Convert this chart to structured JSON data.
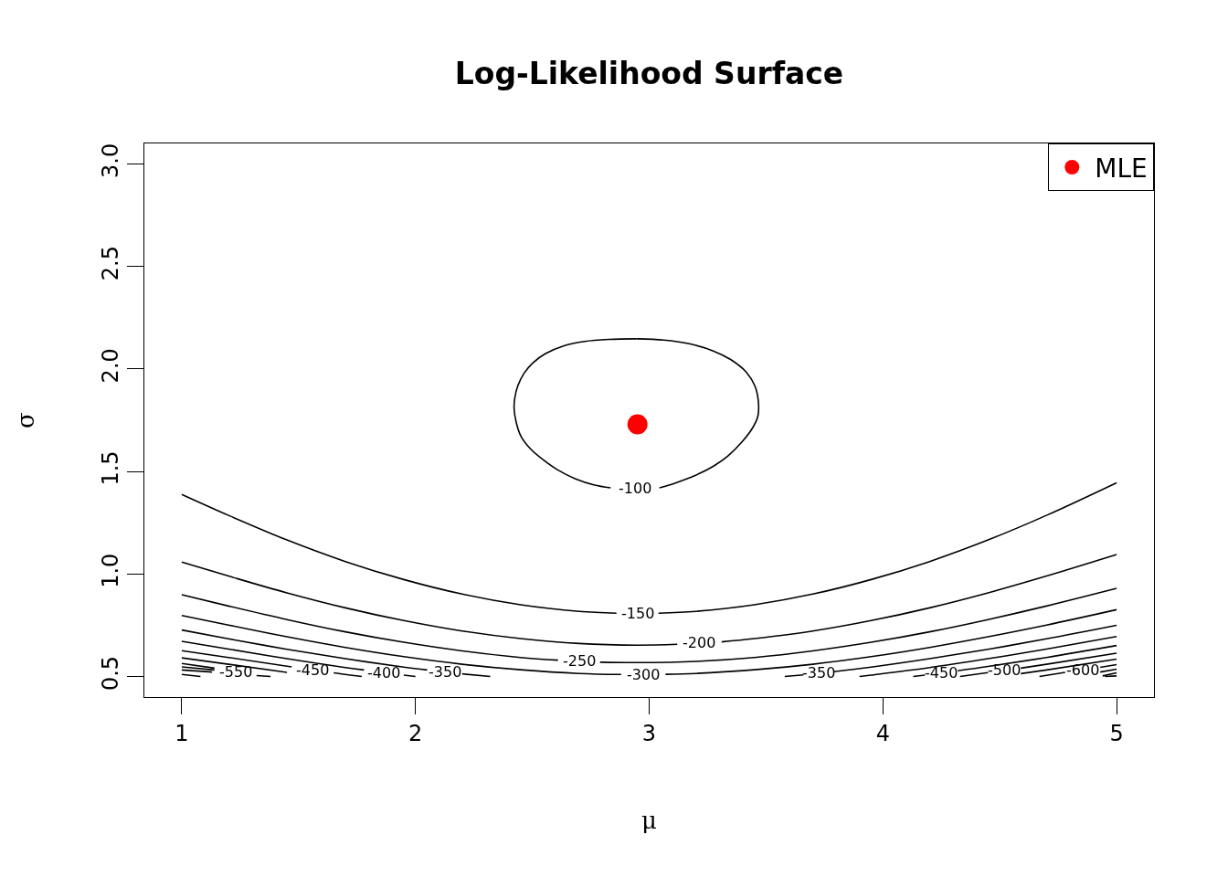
{
  "chart_data": {
    "type": "line",
    "title": "Log-Likelihood Surface",
    "xlabel": "μ",
    "ylabel": "σ",
    "xlim": [
      0.84,
      5.16
    ],
    "ylim": [
      0.4,
      3.1
    ],
    "xticks": [
      1,
      2,
      3,
      4,
      5
    ],
    "yticks": [
      {
        "value": 0.5,
        "label": "0.5"
      },
      {
        "value": 1,
        "label": "1.0"
      },
      {
        "value": 1.5,
        "label": "1.5"
      },
      {
        "value": 2,
        "label": "2.0"
      },
      {
        "value": 2.5,
        "label": "2.5"
      },
      {
        "value": 3,
        "label": "3.0"
      }
    ],
    "legend": "top right",
    "line_style": "solid",
    "series": [
      {
        "name": "-100",
        "color": "#000000",
        "x": [
          2.946,
          3.063,
          3.167,
          3.272,
          3.35,
          3.415,
          3.452,
          3.467,
          3.465,
          3.441,
          3.396,
          3.337,
          3.272,
          3.194,
          3.115,
          3.044,
          null,
          2.835,
          2.763,
          2.685,
          2.607,
          2.542,
          2.49,
          2.451,
          2.431,
          2.422,
          2.425,
          2.438,
          2.464,
          2.503,
          2.555,
          2.633,
          2.724,
          2.829,
          2.946
        ],
        "values": [
          2.147,
          2.141,
          2.124,
          2.089,
          2.045,
          1.985,
          1.918,
          1.844,
          1.769,
          1.71,
          1.643,
          1.576,
          1.524,
          1.479,
          1.445,
          1.42,
          null,
          1.42,
          1.435,
          1.464,
          1.509,
          1.561,
          1.613,
          1.673,
          1.74,
          1.807,
          1.859,
          1.918,
          1.978,
          2.03,
          2.074,
          2.112,
          2.134,
          2.144,
          2.147
        ]
      },
      {
        "name": "-150",
        "color": "#000000",
        "x": [
          1,
          1.2,
          1.45,
          1.7,
          1.95,
          2.2,
          2.45,
          2.7,
          2.86,
          null,
          3.04,
          3.2,
          3.45,
          3.7,
          3.95,
          4.2,
          4.45,
          4.7,
          5
        ],
        "values": [
          1.388,
          1.286,
          1.166,
          1.061,
          0.973,
          0.902,
          0.85,
          0.818,
          0.809,
          null,
          0.809,
          0.818,
          0.85,
          0.902,
          0.973,
          1.061,
          1.166,
          1.286,
          1.445
        ]
      },
      {
        "name": "-200",
        "color": "#000000",
        "x": [
          1,
          1.2,
          1.45,
          1.7,
          1.95,
          2.2,
          2.45,
          2.7,
          2.95,
          3.12,
          null,
          3.31,
          3.45,
          3.7,
          3.95,
          4.2,
          4.45,
          4.7,
          5
        ],
        "values": [
          1.058,
          0.99,
          0.908,
          0.835,
          0.773,
          0.722,
          0.685,
          0.661,
          0.653,
          0.657,
          null,
          0.669,
          0.685,
          0.722,
          0.773,
          0.835,
          0.908,
          0.99,
          1.095
        ]
      },
      {
        "name": "-250",
        "color": "#000000",
        "x": [
          1,
          1.2,
          1.45,
          1.7,
          1.95,
          2.2,
          2.45,
          2.61,
          null,
          2.79,
          2.95,
          3.2,
          3.45,
          3.7,
          3.95,
          4.2,
          4.45,
          4.7,
          5
        ],
        "values": [
          0.899,
          0.844,
          0.778,
          0.718,
          0.667,
          0.625,
          0.593,
          0.58,
          null,
          0.57,
          0.568,
          0.574,
          0.593,
          0.625,
          0.667,
          0.718,
          0.778,
          0.844,
          0.93
        ]
      },
      {
        "name": "-300",
        "color": "#000000",
        "x": [
          1,
          1.2,
          1.45,
          1.7,
          1.95,
          2.2,
          2.45,
          2.7,
          2.88,
          null,
          3.07,
          3.2,
          3.45,
          3.7,
          3.95,
          4.2,
          4.45,
          4.7,
          5
        ],
        "values": [
          0.798,
          0.751,
          0.694,
          0.642,
          0.597,
          0.56,
          0.533,
          0.515,
          0.51,
          null,
          0.511,
          0.515,
          0.533,
          0.56,
          0.597,
          0.642,
          0.694,
          0.751,
          0.826
        ]
      },
      {
        "name": "-350",
        "color": "#000000",
        "x": [
          1,
          1.2,
          1.45,
          1.7,
          1.95,
          2.05,
          null,
          2.2,
          2.32
        ],
        "values": [
          0.727,
          0.684,
          0.633,
          0.587,
          0.546,
          0.532,
          null,
          0.513,
          0.5
        ]
      },
      {
        "name": "-350",
        "color": "#000000",
        "x": [
          3.58,
          3.66,
          null,
          3.79,
          3.95,
          4.2,
          4.45,
          4.7,
          5
        ],
        "values": [
          0.5,
          0.508,
          null,
          0.524,
          0.546,
          0.587,
          0.633,
          0.684,
          0.75
        ]
      },
      {
        "name": "-400",
        "color": "#000000",
        "x": [
          1,
          1.2,
          1.45,
          1.7,
          1.78,
          null,
          1.95,
          2
        ],
        "values": [
          0.672,
          0.634,
          0.587,
          0.544,
          0.532,
          null,
          0.507,
          0.5
        ]
      },
      {
        "color": "#000000",
        "x": [
          3.9,
          3.95,
          4.2,
          4.45,
          4.7,
          5
        ],
        "values": [
          0.5,
          0.507,
          0.544,
          0.587,
          0.634,
          0.695
        ]
      },
      {
        "name": "-450",
        "color": "#000000",
        "x": [
          1,
          1.2,
          1.47,
          null,
          1.65,
          1.7,
          1.77
        ],
        "values": [
          0.626,
          0.593,
          0.547,
          null,
          0.518,
          0.51,
          0.5
        ]
      },
      {
        "name": "-450",
        "color": "#000000",
        "x": [
          4.13,
          4.18,
          null,
          4.32,
          4.45,
          4.7,
          5
        ],
        "values": [
          0.5,
          0.507,
          null,
          0.528,
          0.549,
          0.593,
          0.651
        ]
      },
      {
        "color": "#000000",
        "x": [
          1,
          1.2,
          1.45
        ],
        "values": [
          0.591,
          0.56,
          0.52
        ]
      },
      {
        "name": "-500",
        "color": "#000000",
        "x": [
          4.33,
          4.45,
          null,
          4.59,
          4.7,
          5
        ],
        "values": [
          0.5,
          0.519,
          null,
          0.541,
          0.56,
          0.614
        ]
      },
      {
        "name": "-550",
        "color": "#000000",
        "x": [
          1,
          1.14,
          null,
          1.32,
          1.38
        ],
        "values": [
          0.564,
          0.541,
          null,
          0.505,
          0.5
        ]
      },
      {
        "color": "#000000",
        "x": [
          4.59,
          4.7,
          5
        ],
        "values": [
          0.514,
          0.532,
          0.585
        ]
      },
      {
        "color": "#000000",
        "x": [
          1,
          1.14
        ],
        "values": [
          0.547,
          0.532
        ]
      },
      {
        "name": "-600",
        "color": "#000000",
        "x": [
          4.67,
          4.78,
          null,
          4.93,
          5
        ],
        "values": [
          0.5,
          0.52,
          null,
          0.545,
          0.558
        ]
      },
      {
        "color": "#000000",
        "x": [
          1,
          1.13
        ],
        "values": [
          0.532,
          0.522
        ]
      },
      {
        "color": "#000000",
        "x": [
          4.93,
          5
        ],
        "values": [
          0.522,
          0.536
        ]
      },
      {
        "color": "#000000",
        "x": [
          1,
          1.08
        ],
        "values": [
          0.51,
          0.5
        ]
      },
      {
        "color": "#000000",
        "x": [
          4.94,
          5
        ],
        "values": [
          0.503,
          0.518
        ]
      },
      {
        "color": "#000000",
        "x": [
          4.95,
          5
        ],
        "values": [
          0.5,
          0.503
        ]
      },
      {
        "name": "MLE",
        "type": "scatter",
        "marker": "circle",
        "color": "#ff0000",
        "x": [
          2.95
        ],
        "values": [
          1.73
        ]
      }
    ]
  }
}
